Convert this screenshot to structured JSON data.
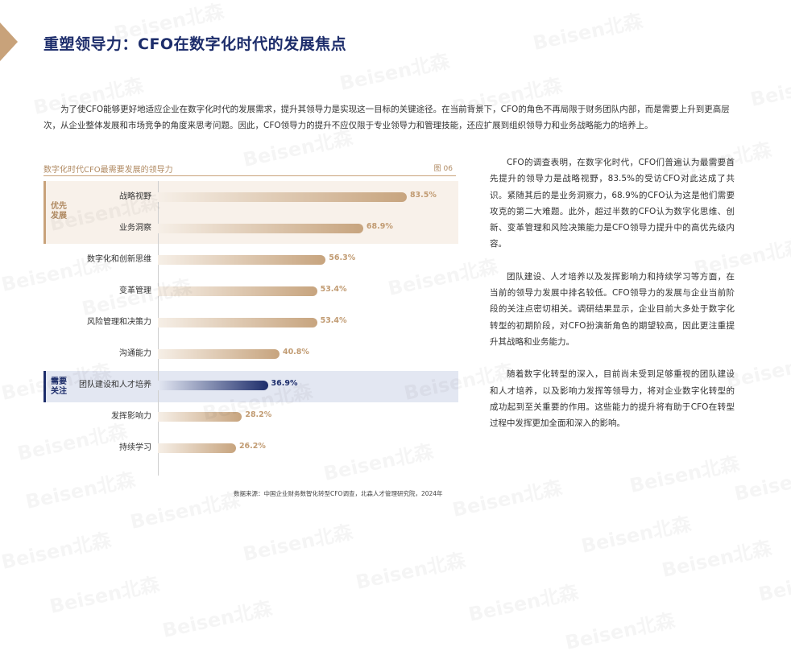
{
  "page": {
    "title": "重塑领导力：CFO在数字化时代的发展焦点",
    "intro": "为了使CFO能够更好地适应企业在数字化时代的发展需求，提升其领导力是实现这一目标的关键途径。在当前背景下，CFO的角色不再局限于财务团队内部，而是需要上升到更高层次，从企业整体发展和市场竞争的角度来思考问题。因此，CFO领导力的提升不应仅限于专业领导力和管理技能，还应扩展到组织领导力和业务战略能力的培养上。",
    "watermark": "Beisen北森",
    "accent_color": "#c8a27a",
    "brand_color": "#1d2d6b"
  },
  "chart": {
    "title": "数字化时代CFO最需要发展的领导力",
    "figure_number": "图 06",
    "priority_label": "优先\n发展",
    "attention_label": "需要\n关注",
    "source": "数据来源：中国企业财务数智化转型CFO调查，北森人才管理研究院，2024年"
  },
  "chart_data": {
    "type": "bar",
    "orientation": "horizontal",
    "title": "数字化时代CFO最需要发展的领导力",
    "categories": [
      "战略视野",
      "业务洞察",
      "数字化和创新思维",
      "变革管理",
      "风险管理和决策力",
      "沟通能力",
      "团队建设和人才培养",
      "发挥影响力",
      "持续学习"
    ],
    "values": [
      83.5,
      68.9,
      56.3,
      53.4,
      53.4,
      40.8,
      36.9,
      28.2,
      26.2
    ],
    "value_labels": [
      "83.5%",
      "68.9%",
      "56.3%",
      "53.4%",
      "53.4%",
      "40.8%",
      "36.9%",
      "28.2%",
      "26.2%"
    ],
    "unit": "%",
    "xlim": [
      0,
      100
    ],
    "groups": {
      "优先发展": [
        "战略视野",
        "业务洞察"
      ],
      "需要关注": [
        "团队建设和人才培养"
      ]
    },
    "highlight_index": 6,
    "colors": {
      "bar": "#c7a47e",
      "highlight": "#1d2d6b"
    }
  },
  "right_column": {
    "paragraphs": [
      "CFO的调查表明，在数字化时代，CFO们普遍认为最需要首先提升的领导力是战略视野，83.5%的受访CFO对此达成了共识。紧随其后的是业务洞察力，68.9%的CFO认为这是他们需要攻克的第二大难题。此外，超过半数的CFO认为数字化思维、创新、变革管理和风险决策能力是CFO领导力提升中的高优先级内容。",
      "团队建设、人才培养以及发挥影响力和持续学习等方面，在当前的领导力发展中排名较低。CFO领导力的发展与企业当前阶段的关注点密切相关。调研结果显示，企业目前大多处于数字化转型的初期阶段，对CFO扮演新角色的期望较高，因此更注重提升其战略和业务能力。",
      "随着数字化转型的深入，目前尚未受到足够重视的团队建设和人才培养，以及影响力发挥等领导力，将对企业数字化转型的成功起到至关重要的作用。这些能力的提升将有助于CFO在转型过程中发挥更加全面和深入的影响。"
    ]
  }
}
